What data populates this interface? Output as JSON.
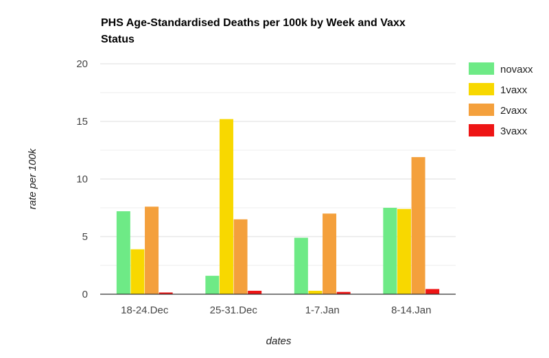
{
  "chart_data": {
    "type": "bar",
    "title": "PHS Age-Standardised Deaths per 100k by Week and Vaxx Status",
    "title_line1": "PHS Age-Standardised Deaths per 100k by Week and Vaxx",
    "title_line2": "Status",
    "xlabel": "dates",
    "ylabel": "rate per 100k",
    "categories": [
      "18-24.Dec",
      "25-31.Dec",
      "1-7.Jan",
      "8-14.Jan"
    ],
    "ylim": [
      0,
      20
    ],
    "yticks": [
      0,
      5,
      10,
      15,
      20
    ],
    "grid": true,
    "legend_position": "right",
    "series": [
      {
        "name": "novaxx",
        "color": "#6eea86",
        "values": [
          7.2,
          1.6,
          4.9,
          7.5
        ]
      },
      {
        "name": "1vaxx",
        "color": "#f8d800",
        "values": [
          3.9,
          15.2,
          0.3,
          7.4
        ]
      },
      {
        "name": "2vaxx",
        "color": "#f4a03c",
        "values": [
          7.6,
          6.5,
          7.0,
          11.9
        ]
      },
      {
        "name": "3vaxx",
        "color": "#ee1515",
        "values": [
          0.15,
          0.3,
          0.2,
          0.45
        ]
      }
    ]
  }
}
